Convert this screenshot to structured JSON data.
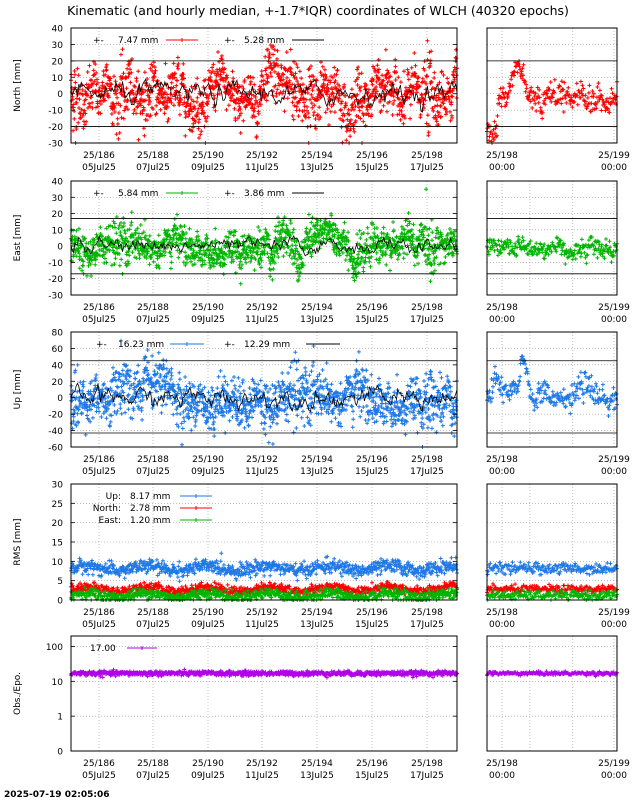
{
  "title": "Kinematic (and hourly median, +-1.7*IQR) coordinates of WLCH (40320 epochs)",
  "timestamp": "2025-07-19 02:05:06",
  "colors": {
    "north": "#ff0000",
    "east": "#00b400",
    "up": "#1e78e6",
    "obs": "#b000e8",
    "median": "#000000"
  },
  "chart_data": [
    {
      "type": "scatter",
      "name": "north",
      "ylabel": "North [mm]",
      "ylim": [
        -30,
        40
      ],
      "yticks": [
        -30,
        -20,
        -10,
        0,
        10,
        20,
        30,
        40
      ],
      "bounds": [
        -20,
        20
      ],
      "legend": [
        {
          "symbol": "+-",
          "value": "7.47 mm"
        },
        {
          "symbol": "+-",
          "value": "5.28 mm"
        }
      ],
      "xticks": [
        {
          "top": "25/186",
          "bottom": "05Jul25"
        },
        {
          "top": "25/188",
          "bottom": "07Jul25"
        },
        {
          "top": "25/190",
          "bottom": "09Jul25"
        },
        {
          "top": "25/192",
          "bottom": "11Jul25"
        },
        {
          "top": "25/194",
          "bottom": "13Jul25"
        },
        {
          "top": "25/196",
          "bottom": "15Jul25"
        },
        {
          "top": "25/198",
          "bottom": "17Jul25"
        }
      ],
      "zoom_xticks": [
        {
          "top": "25/198",
          "bottom": "00:00"
        },
        {
          "top": "25/199",
          "bottom": "00:00"
        }
      ]
    },
    {
      "type": "scatter",
      "name": "east",
      "ylabel": "East [mm]",
      "ylim": [
        -30,
        40
      ],
      "yticks": [
        -30,
        -20,
        -10,
        0,
        10,
        20,
        30,
        40
      ],
      "bounds": [
        -17,
        17
      ],
      "legend": [
        {
          "symbol": "+-",
          "value": "5.84 mm"
        },
        {
          "symbol": "+-",
          "value": "3.86 mm"
        }
      ],
      "xticks": [
        {
          "top": "25/186",
          "bottom": "05Jul25"
        },
        {
          "top": "25/188",
          "bottom": "07Jul25"
        },
        {
          "top": "25/190",
          "bottom": "09Jul25"
        },
        {
          "top": "25/192",
          "bottom": "11Jul25"
        },
        {
          "top": "25/194",
          "bottom": "13Jul25"
        },
        {
          "top": "25/196",
          "bottom": "15Jul25"
        },
        {
          "top": "25/198",
          "bottom": "17Jul25"
        }
      ],
      "zoom_xticks": [
        {
          "top": "25/198",
          "bottom": "00:00"
        },
        {
          "top": "25/199",
          "bottom": "00:00"
        }
      ]
    },
    {
      "type": "scatter",
      "name": "up",
      "ylabel": "Up [mm]",
      "ylim": [
        -60,
        80
      ],
      "yticks": [
        -60,
        -40,
        -20,
        0,
        20,
        40,
        60,
        80
      ],
      "bounds": [
        -43,
        45
      ],
      "legend": [
        {
          "symbol": "+-",
          "value": "16.23 mm"
        },
        {
          "symbol": "+-",
          "value": "12.29 mm"
        }
      ],
      "xticks": [
        {
          "top": "25/186",
          "bottom": "05Jul25"
        },
        {
          "top": "25/188",
          "bottom": "07Jul25"
        },
        {
          "top": "25/190",
          "bottom": "09Jul25"
        },
        {
          "top": "25/192",
          "bottom": "11Jul25"
        },
        {
          "top": "25/194",
          "bottom": "13Jul25"
        },
        {
          "top": "25/196",
          "bottom": "15Jul25"
        },
        {
          "top": "25/198",
          "bottom": "17Jul25"
        }
      ],
      "zoom_xticks": [
        {
          "top": "25/198",
          "bottom": "00:00"
        },
        {
          "top": "25/199",
          "bottom": "00:00"
        }
      ]
    },
    {
      "type": "scatter",
      "name": "rms",
      "ylabel": "RMS [mm]",
      "ylim": [
        0,
        30
      ],
      "yticks": [
        0,
        5,
        10,
        15,
        20,
        25,
        30
      ],
      "legend": [
        {
          "label": "Up:",
          "value": "8.17 mm"
        },
        {
          "label": "North:",
          "value": "2.78 mm"
        },
        {
          "label": "East:",
          "value": "1.20 mm"
        }
      ],
      "levels": {
        "up": 8.17,
        "north": 2.78,
        "east": 1.2
      },
      "xticks": [
        {
          "top": "25/186",
          "bottom": "05Jul25"
        },
        {
          "top": "25/188",
          "bottom": "07Jul25"
        },
        {
          "top": "25/190",
          "bottom": "09Jul25"
        },
        {
          "top": "25/192",
          "bottom": "11Jul25"
        },
        {
          "top": "25/194",
          "bottom": "13Jul25"
        },
        {
          "top": "25/196",
          "bottom": "15Jul25"
        },
        {
          "top": "25/198",
          "bottom": "17Jul25"
        }
      ],
      "zoom_xticks": [
        {
          "top": "25/198",
          "bottom": "00:00"
        },
        {
          "top": "25/199",
          "bottom": "00:00"
        }
      ]
    },
    {
      "type": "scatter",
      "name": "obs",
      "ylabel": "Obs./Epo.",
      "yscale": "log",
      "ylim": [
        0.1,
        200
      ],
      "yticks": [
        {
          "label": "0",
          "value": 0.1
        },
        {
          "label": "1",
          "value": 1
        },
        {
          "label": "10",
          "value": 10
        },
        {
          "label": "100",
          "value": 100
        }
      ],
      "legend": [
        {
          "value": "17.00"
        }
      ],
      "level": 17,
      "xticks": [
        {
          "top": "25/186",
          "bottom": "05Jul25"
        },
        {
          "top": "25/188",
          "bottom": "07Jul25"
        },
        {
          "top": "25/190",
          "bottom": "09Jul25"
        },
        {
          "top": "25/192",
          "bottom": "11Jul25"
        },
        {
          "top": "25/194",
          "bottom": "13Jul25"
        },
        {
          "top": "25/196",
          "bottom": "15Jul25"
        },
        {
          "top": "25/198",
          "bottom": "17Jul25"
        }
      ],
      "zoom_xticks": [
        {
          "top": "25/198",
          "bottom": "00:00"
        },
        {
          "top": "25/199",
          "bottom": "00:00"
        }
      ]
    }
  ]
}
